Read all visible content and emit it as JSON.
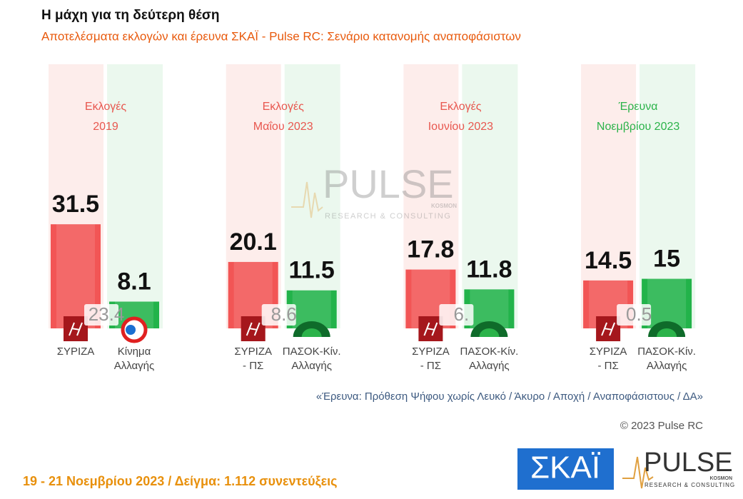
{
  "chart_data": {
    "type": "bar",
    "title": "Η μάχη για τη δεύτερη θέση",
    "subtitle": "Αποτελέσματα εκλογών και έρευνα ΣΚΑΪ - Pulse RC: Σενάριο κατανομής αναποφάσιστων",
    "categories": [
      [
        "Εκλογές",
        "2019"
      ],
      [
        "Εκλογές",
        "Μαΐου 2023"
      ],
      [
        "Εκλογές",
        "Ιουνίου 2023"
      ],
      [
        "Έρευνα",
        "Νοεμβρίου 2023"
      ]
    ],
    "category_colors": [
      "#e8574f",
      "#e8574f",
      "#e8574f",
      "#2bb34a"
    ],
    "series": [
      {
        "color": "#f25555",
        "values": [
          31.5,
          20.1,
          17.8,
          14.5
        ],
        "labels": [
          [
            "ΣΥΡΙΖΑ"
          ],
          [
            "ΣΥΡΙΖΑ",
            "- ΠΣ"
          ],
          [
            "ΣΥΡΙΖΑ",
            "- ΠΣ"
          ],
          [
            "ΣΥΡΙΖΑ",
            "- ΠΣ"
          ]
        ]
      },
      {
        "color": "#22b34a",
        "values": [
          8.1,
          11.5,
          11.8,
          15
        ],
        "labels": [
          [
            "Κίνημα",
            "Αλλαγής"
          ],
          [
            "ΠΑΣΟΚ-Κίν.",
            "Αλλαγής"
          ],
          [
            "ΠΑΣΟΚ-Κίν.",
            "Αλλαγής"
          ],
          [
            "ΠΑΣΟΚ-Κίν.",
            "Αλλαγής"
          ]
        ]
      }
    ],
    "gap_labels": [
      "23.4",
      "8.6",
      "6.",
      "0.5"
    ],
    "watermark": [
      "PULSE",
      "KOSMON",
      "RESEARCH & CONSULTING"
    ],
    "note": "«Έρευνα: Πρόθεση Ψήφου χωρίς Λευκό / Άκυρο / Αποχή / Αναποφάσιστους / ΔΑ»",
    "copyright": "© 2023 Pulse RC",
    "footer": "19 - 21  Νοεμβρίου  2023  /  Δείγμα:  1.112 συνεντεύξεις",
    "logos": {
      "skai": "ΣΚΑΪ",
      "pulse": "PULSE",
      "kosmon": "KOSMON",
      "pulse_sub": "RESEARCH & CONSULTING"
    }
  }
}
